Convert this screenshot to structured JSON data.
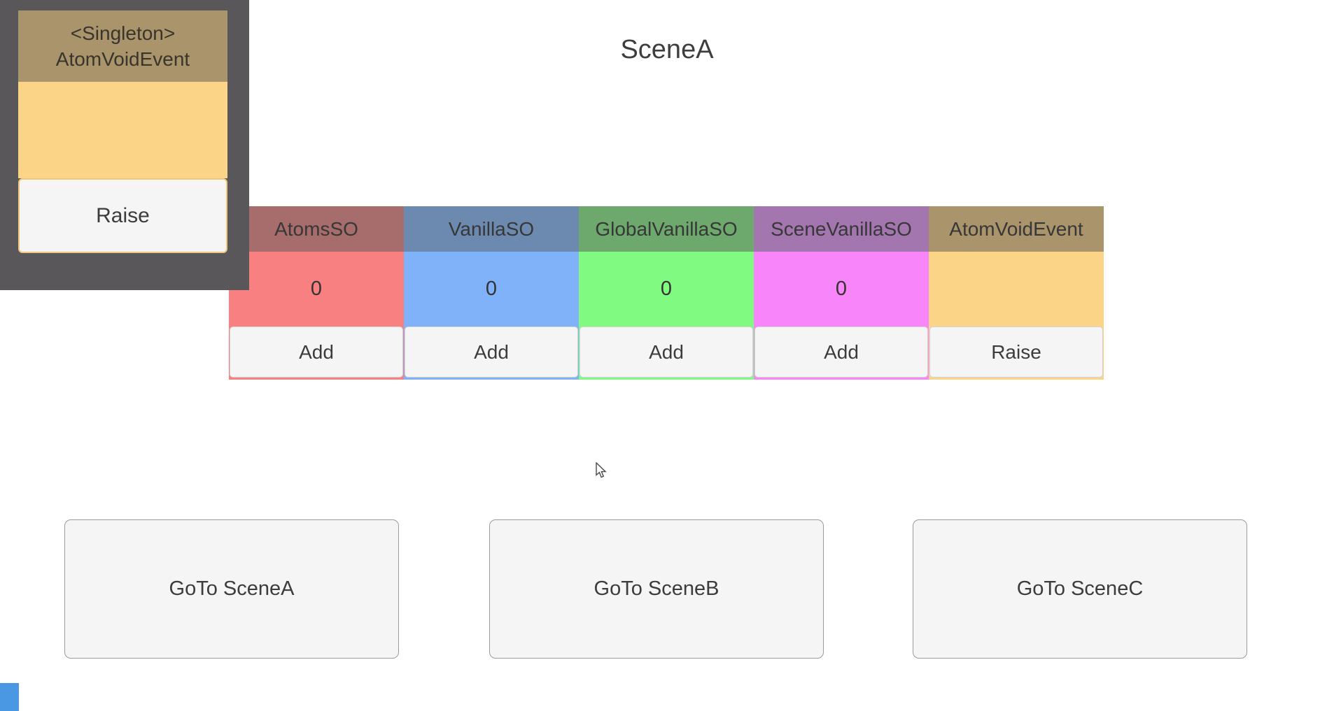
{
  "scene": {
    "title": "SceneA"
  },
  "singleton_panel": {
    "header_line1": "<Singleton>",
    "header_line2": "AtomVoidEvent",
    "raise_label": "Raise",
    "colors": {
      "panel_bg": "#595759",
      "header_bg": "#a9946c",
      "body_bg": "#fbd488",
      "button_bg": "#f5f5f5",
      "button_border": "#eec87d"
    }
  },
  "counters": [
    {
      "label": "AtomsSO",
      "value": "0",
      "button_label": "Add",
      "header_color": "#a76c6c",
      "body_color": "#f98080"
    },
    {
      "label": "VanillaSO",
      "value": "0",
      "button_label": "Add",
      "header_color": "#6c8ab0",
      "body_color": "#80b2fa"
    },
    {
      "label": "GlobalVanillaSO",
      "value": "0",
      "button_label": "Add",
      "header_color": "#6da86d",
      "body_color": "#80fa80"
    },
    {
      "label": "SceneVanillaSO",
      "value": "0",
      "button_label": "Add",
      "header_color": "#a476b0",
      "body_color": "#f985fa"
    },
    {
      "label": "AtomVoidEvent",
      "value": "",
      "button_label": "Raise",
      "header_color": "#a9946c",
      "body_color": "#fbd488"
    }
  ],
  "scene_buttons": [
    {
      "label": "GoTo SceneA"
    },
    {
      "label": "GoTo SceneB"
    },
    {
      "label": "GoTo SceneC"
    }
  ],
  "misc": {
    "corner_square_color": "#4a97e3",
    "text_color": "#3c3c3c",
    "button_bg": "#f5f5f5"
  }
}
